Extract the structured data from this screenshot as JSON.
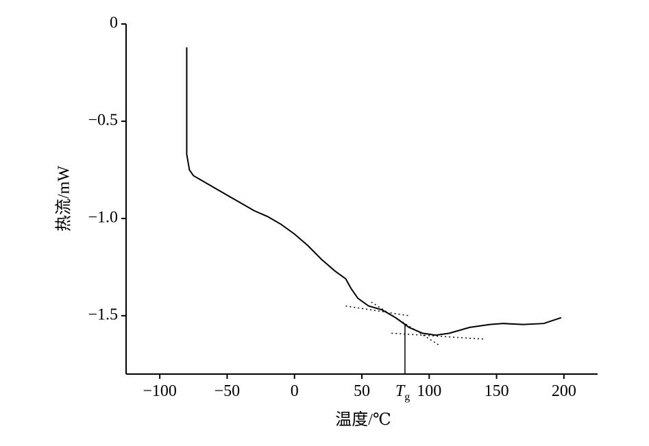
{
  "chart_data": {
    "type": "line",
    "xlabel": "温度/℃",
    "ylabel": "热流/mW",
    "xlim": [
      -125,
      225
    ],
    "ylim": [
      -1.8,
      0
    ],
    "xticks": [
      {
        "value": -100,
        "label": "−100"
      },
      {
        "value": -50,
        "label": "−50"
      },
      0,
      50,
      100,
      150,
      200
    ],
    "yticks": [
      0,
      {
        "value": -0.5,
        "label": "−0.5"
      },
      {
        "value": -1.0,
        "label": "−1.0"
      },
      {
        "value": -1.5,
        "label": "−1.5"
      }
    ],
    "x": [
      -80,
      -80,
      -78,
      -75,
      -70,
      -60,
      -50,
      -40,
      -30,
      -20,
      -10,
      0,
      10,
      20,
      30,
      38,
      42,
      47,
      55,
      65,
      75,
      85,
      95,
      105,
      115,
      130,
      145,
      155,
      170,
      185,
      198
    ],
    "values": [
      -0.12,
      -0.67,
      -0.75,
      -0.78,
      -0.8,
      -0.84,
      -0.88,
      -0.92,
      -0.96,
      -0.99,
      -1.03,
      -1.08,
      -1.14,
      -1.21,
      -1.27,
      -1.31,
      -1.36,
      -1.41,
      -1.45,
      -1.47,
      -1.51,
      -1.56,
      -1.59,
      -1.6,
      -1.59,
      -1.56,
      -1.545,
      -1.54,
      -1.545,
      -1.54,
      -1.51
    ],
    "color": "#000000",
    "guides": [
      {
        "x": [
          38,
          85
        ],
        "y": [
          -1.45,
          -1.5
        ]
      },
      {
        "x": [
          57,
          107
        ],
        "y": [
          -1.43,
          -1.65
        ]
      },
      {
        "x": [
          72,
          140
        ],
        "y": [
          -1.59,
          -1.62
        ]
      }
    ],
    "tg_marker": {
      "x": 82,
      "y": -1.54,
      "text": "T",
      "sub": "g"
    }
  }
}
